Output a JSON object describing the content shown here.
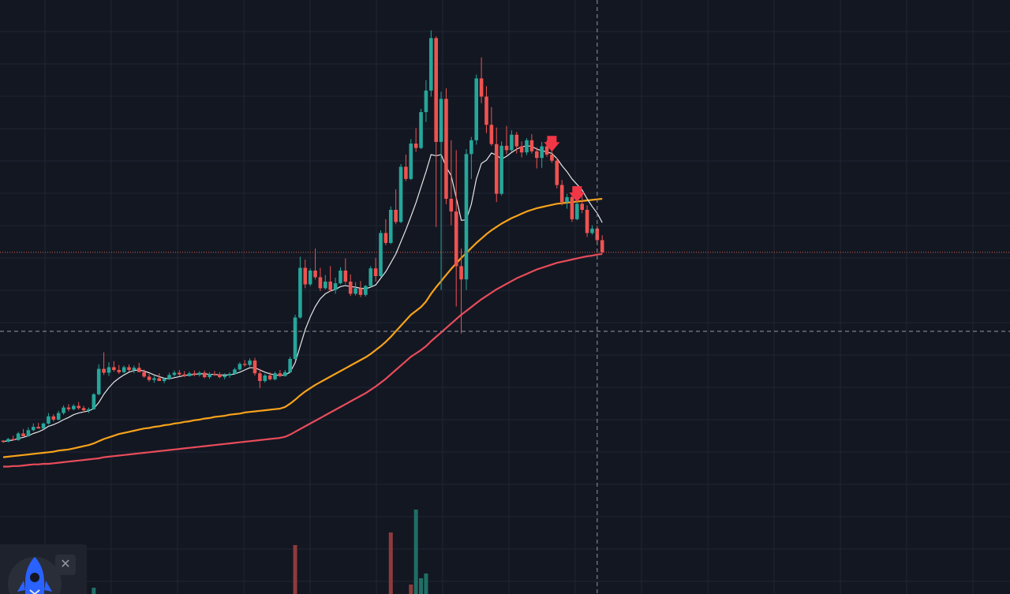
{
  "colors": {
    "background": "#131722",
    "grid": "#1f2533",
    "up": "#26a69a",
    "down": "#ef5350",
    "ma_fast": "#e6e6e6",
    "ma_mid": "#f7a21b",
    "ma_slow": "#e84c5a",
    "signal": "#f23645",
    "crosshair": "#9598a1",
    "price_line": "#d9664d",
    "widget": "#1e222d"
  },
  "widget": {
    "logo_icon": "rocket-icon",
    "close_icon": "close-icon",
    "close_glyph": "✕"
  },
  "chart_data": {
    "type": "candlestick",
    "title": "",
    "xlabel": "",
    "ylabel": "",
    "x_range": [
      0,
      140
    ],
    "ylim": [
      0,
      100
    ],
    "grid": true,
    "legend": "none",
    "last_price": 54.3,
    "crosshair": {
      "x": 118,
      "y": 40.0
    },
    "candles": [
      [
        20.2,
        20.3,
        19.8,
        20.0
      ],
      [
        20.0,
        20.7,
        19.9,
        20.5
      ],
      [
        20.5,
        21.1,
        20.2,
        20.3
      ],
      [
        20.3,
        21.8,
        20.2,
        21.5
      ],
      [
        21.5,
        22.3,
        21.3,
        21.0
      ],
      [
        21.0,
        22.6,
        20.9,
        22.1
      ],
      [
        22.1,
        23.3,
        21.9,
        22.7
      ],
      [
        22.7,
        23.4,
        22.4,
        22.4
      ],
      [
        22.4,
        23.5,
        22.2,
        23.3
      ],
      [
        23.3,
        25.2,
        23.1,
        24.6
      ],
      [
        24.6,
        25.0,
        23.7,
        24.0
      ],
      [
        24.0,
        25.6,
        23.9,
        25.2
      ],
      [
        25.2,
        26.6,
        24.9,
        26.2
      ],
      [
        26.2,
        26.8,
        25.5,
        25.9
      ],
      [
        25.9,
        26.8,
        25.7,
        26.5
      ],
      [
        26.5,
        27.2,
        25.8,
        26.1
      ],
      [
        26.1,
        26.5,
        25.3,
        25.7
      ],
      [
        25.7,
        26.2,
        25.2,
        25.9
      ],
      [
        25.9,
        28.8,
        25.8,
        28.6
      ],
      [
        28.6,
        34.0,
        28.4,
        33.2
      ],
      [
        33.2,
        36.2,
        32.1,
        32.5
      ],
      [
        32.5,
        34.4,
        31.9,
        33.5
      ],
      [
        33.5,
        34.6,
        32.7,
        33.0
      ],
      [
        33.0,
        33.9,
        32.3,
        32.6
      ],
      [
        32.6,
        33.8,
        32.4,
        33.5
      ],
      [
        33.5,
        34.0,
        32.7,
        33.0
      ],
      [
        33.0,
        33.8,
        32.4,
        33.4
      ],
      [
        33.4,
        34.3,
        32.9,
        32.6
      ],
      [
        32.6,
        33.1,
        31.6,
        31.8
      ],
      [
        31.8,
        32.3,
        30.9,
        31.2
      ],
      [
        31.2,
        31.9,
        30.7,
        31.5
      ],
      [
        31.5,
        32.4,
        31.1,
        31.0
      ],
      [
        31.0,
        31.6,
        30.6,
        31.4
      ],
      [
        31.4,
        32.5,
        31.2,
        32.1
      ],
      [
        32.1,
        32.9,
        31.8,
        32.5
      ],
      [
        32.5,
        33.0,
        31.9,
        32.2
      ],
      [
        32.2,
        32.8,
        31.7,
        31.9
      ],
      [
        31.9,
        32.7,
        31.8,
        32.4
      ],
      [
        32.4,
        32.9,
        31.9,
        32.1
      ],
      [
        32.1,
        32.8,
        31.8,
        32.5
      ],
      [
        32.5,
        32.9,
        31.5,
        31.7
      ],
      [
        31.7,
        32.6,
        31.4,
        32.3
      ],
      [
        32.3,
        32.8,
        31.9,
        32.2
      ],
      [
        32.2,
        32.6,
        31.5,
        31.7
      ],
      [
        31.7,
        32.4,
        31.3,
        32.0
      ],
      [
        32.0,
        32.6,
        31.6,
        32.3
      ],
      [
        32.3,
        33.4,
        32.1,
        33.1
      ],
      [
        33.1,
        34.4,
        32.9,
        34.1
      ],
      [
        34.1,
        34.8,
        33.6,
        33.9
      ],
      [
        33.9,
        35.1,
        33.6,
        34.7
      ],
      [
        34.7,
        35.2,
        32.0,
        32.4
      ],
      [
        32.4,
        33.2,
        29.7,
        31.0
      ],
      [
        31.0,
        32.3,
        30.7,
        32.0
      ],
      [
        32.0,
        32.6,
        31.1,
        31.3
      ],
      [
        31.3,
        32.7,
        31.1,
        32.4
      ],
      [
        32.4,
        33.0,
        31.7,
        31.9
      ],
      [
        31.9,
        33.0,
        31.8,
        32.6
      ],
      [
        32.6,
        35.4,
        32.4,
        35.0
      ],
      [
        35.0,
        43.0,
        34.8,
        42.5
      ],
      [
        42.5,
        53.5,
        42.3,
        51.5
      ],
      [
        51.5,
        53.0,
        47.8,
        48.5
      ],
      [
        48.5,
        51.4,
        48.2,
        51.0
      ],
      [
        51.0,
        55.0,
        49.4,
        49.8
      ],
      [
        49.8,
        51.5,
        47.3,
        47.8
      ],
      [
        47.8,
        50.2,
        47.6,
        49.0
      ],
      [
        49.0,
        51.8,
        47.2,
        47.5
      ],
      [
        47.5,
        49.7,
        46.8,
        48.7
      ],
      [
        48.7,
        51.6,
        48.5,
        51.0
      ],
      [
        51.0,
        53.2,
        48.6,
        49.0
      ],
      [
        49.0,
        50.3,
        46.4,
        46.8
      ],
      [
        46.8,
        48.9,
        46.5,
        47.8
      ],
      [
        47.8,
        49.1,
        46.2,
        46.6
      ],
      [
        46.6,
        48.4,
        46.3,
        48.2
      ],
      [
        48.2,
        51.8,
        48.0,
        51.4
      ],
      [
        51.4,
        53.3,
        49.0,
        50.0
      ],
      [
        50.0,
        58.3,
        49.8,
        57.8
      ],
      [
        57.8,
        60.3,
        55.6,
        56.0
      ],
      [
        56.0,
        62.6,
        55.8,
        62.0
      ],
      [
        62.0,
        65.7,
        59.4,
        59.8
      ],
      [
        59.8,
        70.3,
        59.6,
        69.8
      ],
      [
        69.8,
        72.0,
        67.2,
        67.6
      ],
      [
        67.6,
        74.8,
        67.4,
        74.0
      ],
      [
        74.0,
        76.8,
        72.5,
        73.2
      ],
      [
        73.2,
        80.3,
        73.0,
        79.7
      ],
      [
        79.7,
        85.5,
        77.9,
        83.6
      ],
      [
        83.6,
        94.5,
        82.5,
        93.1
      ],
      [
        93.1,
        93.4,
        58.9,
        74.3
      ],
      [
        74.3,
        83.4,
        47.5,
        82.1
      ],
      [
        82.1,
        84.0,
        63.0,
        64.0
      ],
      [
        64.0,
        74.6,
        59.2,
        61.7
      ],
      [
        61.7,
        72.8,
        44.5,
        51.8
      ],
      [
        51.8,
        55.0,
        39.6,
        49.4
      ],
      [
        49.4,
        73.0,
        47.5,
        72.1
      ],
      [
        72.1,
        75.2,
        67.6,
        74.6
      ],
      [
        74.6,
        86.5,
        73.8,
        85.8
      ],
      [
        85.8,
        89.6,
        81.3,
        82.5
      ],
      [
        82.5,
        84.4,
        75.9,
        77.4
      ],
      [
        77.4,
        80.6,
        73.6,
        73.9
      ],
      [
        73.9,
        76.9,
        63.4,
        64.9
      ],
      [
        64.9,
        74.4,
        64.6,
        73.6
      ],
      [
        73.6,
        77.2,
        72.1,
        72.8
      ],
      [
        72.8,
        76.4,
        72.5,
        75.6
      ],
      [
        75.6,
        76.1,
        72.2,
        73.5
      ],
      [
        73.5,
        74.4,
        71.5,
        72.4
      ],
      [
        72.4,
        75.0,
        71.9,
        74.6
      ],
      [
        74.6,
        75.7,
        72.2,
        72.6
      ],
      [
        72.6,
        73.3,
        69.5,
        71.4
      ],
      [
        71.4,
        74.3,
        69.6,
        73.5
      ],
      [
        73.5,
        74.5,
        71.6,
        72.0
      ],
      [
        72.0,
        73.1,
        70.5,
        70.9
      ],
      [
        70.9,
        71.4,
        65.9,
        66.5
      ],
      [
        66.5,
        67.4,
        62.8,
        63.4
      ],
      [
        63.4,
        64.9,
        62.2,
        64.3
      ],
      [
        64.3,
        65.1,
        59.8,
        60.3
      ],
      [
        60.3,
        64.0,
        60.1,
        63.1
      ],
      [
        63.1,
        64.6,
        61.4,
        62.0
      ],
      [
        62.0,
        62.8,
        57.1,
        57.8
      ],
      [
        57.8,
        59.2,
        57.5,
        58.6
      ],
      [
        58.6,
        59.1,
        56.0,
        56.5
      ],
      [
        56.5,
        57.4,
        54.1,
        54.3
      ]
    ],
    "volume": [
      0,
      0,
      0,
      0,
      0,
      0,
      0,
      0,
      0,
      0,
      0,
      0,
      0,
      0,
      0,
      0,
      0,
      0,
      0,
      0,
      0,
      0,
      0,
      0,
      0,
      0,
      0,
      0,
      0,
      0,
      0,
      0,
      0,
      0,
      0,
      0,
      0,
      0,
      0,
      0,
      0,
      0,
      0,
      0,
      0,
      0,
      0,
      0,
      0,
      0,
      0,
      0,
      0,
      0,
      0,
      0,
      0,
      0,
      0,
      0,
      0,
      0,
      0,
      0,
      0,
      0,
      0,
      0,
      0,
      0,
      0,
      0,
      0,
      0,
      0,
      0,
      0,
      0,
      0,
      0,
      0,
      0,
      0,
      0,
      0,
      0,
      0,
      0,
      0,
      0,
      0,
      0,
      0,
      0,
      0,
      0,
      0,
      0,
      0,
      0,
      0,
      0,
      0,
      0,
      0,
      0,
      0,
      0,
      0,
      0,
      0,
      0,
      0,
      0,
      0,
      0,
      0,
      0,
      0,
      0,
      0,
      0,
      0,
      0
    ],
    "volume_bars": [
      {
        "i": 18,
        "value": 8,
        "up": true
      },
      {
        "i": 58,
        "value": 62,
        "up": false
      },
      {
        "i": 77,
        "value": 78,
        "up": false
      },
      {
        "i": 81,
        "value": 12,
        "up": false
      },
      {
        "i": 82,
        "value": 107,
        "up": true
      },
      {
        "i": 83,
        "value": 20,
        "up": true
      },
      {
        "i": 84,
        "value": 26,
        "up": true
      }
    ],
    "ma_fast": [
      20.0,
      20.2,
      20.3,
      20.6,
      20.8,
      21.1,
      21.5,
      21.8,
      22.2,
      22.8,
      23.1,
      23.5,
      24.0,
      24.4,
      24.9,
      25.2,
      25.4,
      25.6,
      26.0,
      27.1,
      28.6,
      29.8,
      30.8,
      31.5,
      32.1,
      32.6,
      32.9,
      33.0,
      32.8,
      32.5,
      32.1,
      31.8,
      31.5,
      31.4,
      31.6,
      31.8,
      32.0,
      32.1,
      32.2,
      32.3,
      32.3,
      32.2,
      32.2,
      32.1,
      32.1,
      32.1,
      32.3,
      32.6,
      33.0,
      33.4,
      33.4,
      33.0,
      32.6,
      32.3,
      32.1,
      32.0,
      32.1,
      32.6,
      34.3,
      37.3,
      40.3,
      42.6,
      44.5,
      45.9,
      46.8,
      47.3,
      47.6,
      48.1,
      48.3,
      48.1,
      48.0,
      47.8,
      47.7,
      48.0,
      48.4,
      49.6,
      50.8,
      52.4,
      54.0,
      56.2,
      58.4,
      60.8,
      63.3,
      66.1,
      68.9,
      72.0,
      71.8,
      72.0,
      69.8,
      68.2,
      64.2,
      60.1,
      60.2,
      63.0,
      67.6,
      70.4,
      71.0,
      72.3,
      71.9,
      71.2,
      71.7,
      72.4,
      73.0,
      73.4,
      73.6,
      73.5,
      73.0,
      72.7,
      72.5,
      72.2,
      71.3,
      70.0,
      68.9,
      67.6,
      66.6,
      65.6,
      64.0,
      62.6,
      61.4,
      59.7
    ],
    "ma_mid": [
      17.2,
      17.3,
      17.4,
      17.5,
      17.6,
      17.7,
      17.8,
      17.9,
      18.0,
      18.1,
      18.2,
      18.4,
      18.5,
      18.6,
      18.8,
      19.0,
      19.2,
      19.4,
      19.7,
      20.1,
      20.5,
      20.8,
      21.1,
      21.4,
      21.6,
      21.8,
      22.0,
      22.2,
      22.4,
      22.5,
      22.7,
      22.8,
      23.0,
      23.1,
      23.3,
      23.4,
      23.6,
      23.7,
      23.9,
      24.0,
      24.2,
      24.3,
      24.5,
      24.6,
      24.7,
      24.9,
      25.0,
      25.1,
      25.3,
      25.4,
      25.5,
      25.6,
      25.7,
      25.8,
      25.9,
      26.0,
      26.3,
      26.9,
      27.6,
      28.4,
      29.1,
      29.7,
      30.3,
      30.8,
      31.3,
      31.8,
      32.3,
      32.8,
      33.3,
      33.8,
      34.3,
      34.8,
      35.3,
      35.9,
      36.6,
      37.3,
      38.1,
      39.0,
      40.0,
      41.0,
      42.0,
      43.0,
      43.7,
      44.4,
      45.4,
      46.8,
      48.0,
      49.1,
      50.2,
      51.3,
      52.3,
      53.3,
      54.2,
      55.1,
      56.0,
      56.8,
      57.6,
      58.3,
      58.9,
      59.5,
      60.0,
      60.5,
      60.9,
      61.3,
      61.7,
      62.0,
      62.3,
      62.5,
      62.7,
      62.9,
      63.1,
      63.2,
      63.3,
      63.4,
      63.5,
      63.6,
      63.7,
      63.8,
      63.9,
      64.0
    ],
    "ma_slow": [
      15.5,
      15.5,
      15.6,
      15.6,
      15.7,
      15.8,
      15.9,
      15.9,
      16.0,
      16.0,
      16.1,
      16.2,
      16.3,
      16.4,
      16.5,
      16.6,
      16.7,
      16.8,
      16.9,
      17.0,
      17.2,
      17.3,
      17.4,
      17.5,
      17.6,
      17.7,
      17.8,
      17.9,
      18.0,
      18.1,
      18.2,
      18.3,
      18.4,
      18.5,
      18.6,
      18.7,
      18.8,
      18.9,
      19.0,
      19.1,
      19.2,
      19.3,
      19.4,
      19.5,
      19.6,
      19.7,
      19.8,
      19.9,
      20.0,
      20.1,
      20.2,
      20.3,
      20.4,
      20.5,
      20.6,
      20.7,
      20.9,
      21.3,
      21.8,
      22.3,
      22.8,
      23.3,
      23.8,
      24.3,
      24.8,
      25.3,
      25.8,
      26.3,
      26.8,
      27.3,
      27.8,
      28.3,
      28.8,
      29.4,
      30.0,
      30.7,
      31.4,
      32.2,
      33.0,
      33.8,
      34.6,
      35.4,
      36.0,
      36.6,
      37.3,
      38.2,
      39.0,
      39.8,
      40.6,
      41.4,
      42.2,
      43.0,
      43.7,
      44.4,
      45.1,
      45.8,
      46.4,
      47.0,
      47.6,
      48.1,
      48.6,
      49.1,
      49.6,
      50.0,
      50.4,
      50.8,
      51.2,
      51.5,
      51.8,
      52.1,
      52.4,
      52.6,
      52.8,
      53.0,
      53.2,
      53.4,
      53.6,
      53.7,
      53.9,
      54.0
    ],
    "signals": [
      {
        "i": 109,
        "type": "sell"
      },
      {
        "i": 114,
        "type": "sell"
      }
    ]
  }
}
